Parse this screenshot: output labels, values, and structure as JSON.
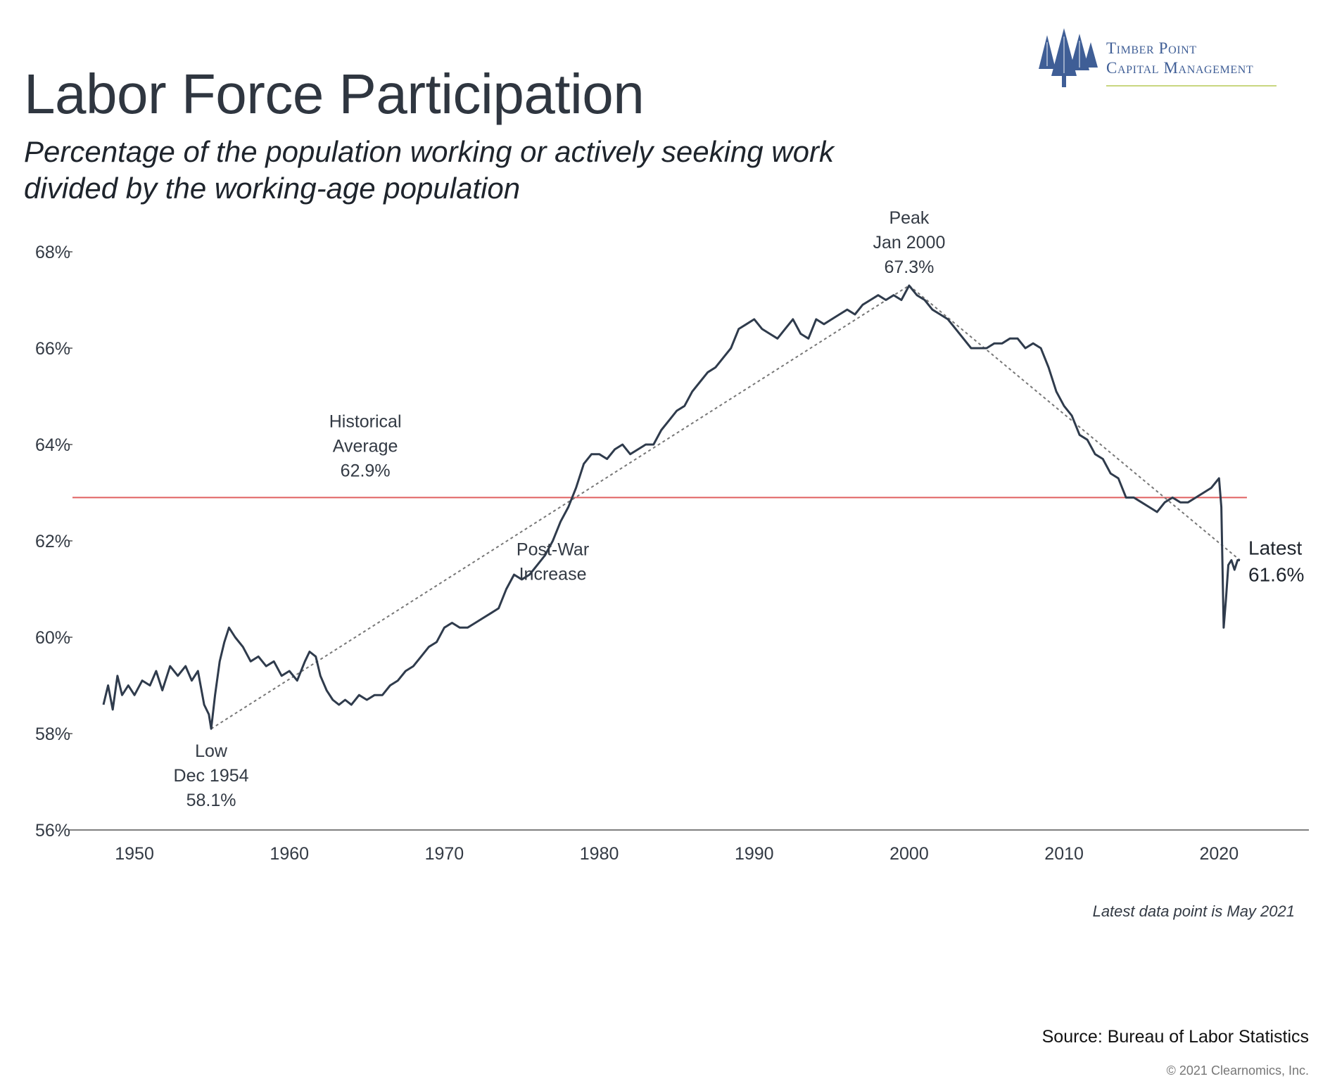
{
  "header": {
    "title": "Labor Force Participation",
    "subtitle_line1": "Percentage of the population working or actively seeking work",
    "subtitle_line2": "divided by the working-age population"
  },
  "logo": {
    "line1": "Timber Point",
    "line2": "Capital Management",
    "color": "#3f5e96",
    "rule_color": "#c9d680"
  },
  "footer": {
    "latest_note": "Latest data point is May 2021",
    "source": "Source: Bureau of Labor Statistics",
    "copyright": "© 2021 Clearnomics, Inc."
  },
  "chart_data": {
    "type": "line",
    "title": "Labor Force Participation",
    "xlabel": "",
    "ylabel": "",
    "xlim": [
      1946,
      2025.8
    ],
    "ylim": [
      56,
      68
    ],
    "grid": false,
    "colors": {
      "line": "#2f3b4c",
      "average": "#e06060",
      "trend": "#777777"
    },
    "y_ticks": [
      {
        "value": 56,
        "label": "56%"
      },
      {
        "value": 58,
        "label": "58%"
      },
      {
        "value": 60,
        "label": "60%"
      },
      {
        "value": 62,
        "label": "62%"
      },
      {
        "value": 64,
        "label": "64%"
      },
      {
        "value": 66,
        "label": "66%"
      },
      {
        "value": 68,
        "label": "68%"
      }
    ],
    "x_ticks": [
      {
        "value": 1950,
        "label": "1950"
      },
      {
        "value": 1960,
        "label": "1960"
      },
      {
        "value": 1970,
        "label": "1970"
      },
      {
        "value": 1980,
        "label": "1980"
      },
      {
        "value": 1990,
        "label": "1990"
      },
      {
        "value": 2000,
        "label": "2000"
      },
      {
        "value": 2010,
        "label": "2010"
      },
      {
        "value": 2020,
        "label": "2020"
      }
    ],
    "series": [
      {
        "values": [
          [
            1948.0,
            58.6
          ],
          [
            1948.3,
            59.0
          ],
          [
            1948.6,
            58.5
          ],
          [
            1948.9,
            59.2
          ],
          [
            1949.2,
            58.8
          ],
          [
            1949.6,
            59.0
          ],
          [
            1950.0,
            58.8
          ],
          [
            1950.5,
            59.1
          ],
          [
            1951.0,
            59.0
          ],
          [
            1951.4,
            59.3
          ],
          [
            1951.8,
            58.9
          ],
          [
            1952.3,
            59.4
          ],
          [
            1952.8,
            59.2
          ],
          [
            1953.3,
            59.4
          ],
          [
            1953.7,
            59.1
          ],
          [
            1954.1,
            59.3
          ],
          [
            1954.5,
            58.6
          ],
          [
            1954.8,
            58.4
          ],
          [
            1954.95,
            58.1
          ],
          [
            1955.2,
            58.8
          ],
          [
            1955.5,
            59.5
          ],
          [
            1955.8,
            59.9
          ],
          [
            1956.1,
            60.2
          ],
          [
            1956.5,
            60.0
          ],
          [
            1957.0,
            59.8
          ],
          [
            1957.5,
            59.5
          ],
          [
            1958.0,
            59.6
          ],
          [
            1958.5,
            59.4
          ],
          [
            1959.0,
            59.5
          ],
          [
            1959.5,
            59.2
          ],
          [
            1960.0,
            59.3
          ],
          [
            1960.5,
            59.1
          ],
          [
            1961.0,
            59.5
          ],
          [
            1961.3,
            59.7
          ],
          [
            1961.7,
            59.6
          ],
          [
            1962.0,
            59.2
          ],
          [
            1962.4,
            58.9
          ],
          [
            1962.8,
            58.7
          ],
          [
            1963.2,
            58.6
          ],
          [
            1963.6,
            58.7
          ],
          [
            1964.0,
            58.6
          ],
          [
            1964.5,
            58.8
          ],
          [
            1965.0,
            58.7
          ],
          [
            1965.5,
            58.8
          ],
          [
            1966.0,
            58.8
          ],
          [
            1966.5,
            59.0
          ],
          [
            1967.0,
            59.1
          ],
          [
            1967.5,
            59.3
          ],
          [
            1968.0,
            59.4
          ],
          [
            1968.5,
            59.6
          ],
          [
            1969.0,
            59.8
          ],
          [
            1969.5,
            59.9
          ],
          [
            1970.0,
            60.2
          ],
          [
            1970.5,
            60.3
          ],
          [
            1971.0,
            60.2
          ],
          [
            1971.5,
            60.2
          ],
          [
            1972.0,
            60.3
          ],
          [
            1972.5,
            60.4
          ],
          [
            1973.0,
            60.5
          ],
          [
            1973.5,
            60.6
          ],
          [
            1974.0,
            61.0
          ],
          [
            1974.5,
            61.3
          ],
          [
            1975.0,
            61.2
          ],
          [
            1975.5,
            61.3
          ],
          [
            1976.0,
            61.5
          ],
          [
            1976.5,
            61.7
          ],
          [
            1977.0,
            62.0
          ],
          [
            1977.5,
            62.4
          ],
          [
            1978.0,
            62.7
          ],
          [
            1978.5,
            63.1
          ],
          [
            1979.0,
            63.6
          ],
          [
            1979.5,
            63.8
          ],
          [
            1980.0,
            63.8
          ],
          [
            1980.5,
            63.7
          ],
          [
            1981.0,
            63.9
          ],
          [
            1981.5,
            64.0
          ],
          [
            1982.0,
            63.8
          ],
          [
            1982.5,
            63.9
          ],
          [
            1983.0,
            64.0
          ],
          [
            1983.5,
            64.0
          ],
          [
            1984.0,
            64.3
          ],
          [
            1984.5,
            64.5
          ],
          [
            1985.0,
            64.7
          ],
          [
            1985.5,
            64.8
          ],
          [
            1986.0,
            65.1
          ],
          [
            1986.5,
            65.3
          ],
          [
            1987.0,
            65.5
          ],
          [
            1987.5,
            65.6
          ],
          [
            1988.0,
            65.8
          ],
          [
            1988.5,
            66.0
          ],
          [
            1989.0,
            66.4
          ],
          [
            1989.5,
            66.5
          ],
          [
            1990.0,
            66.6
          ],
          [
            1990.5,
            66.4
          ],
          [
            1991.0,
            66.3
          ],
          [
            1991.5,
            66.2
          ],
          [
            1992.0,
            66.4
          ],
          [
            1992.5,
            66.6
          ],
          [
            1993.0,
            66.3
          ],
          [
            1993.5,
            66.2
          ],
          [
            1994.0,
            66.6
          ],
          [
            1994.5,
            66.5
          ],
          [
            1995.0,
            66.6
          ],
          [
            1995.5,
            66.7
          ],
          [
            1996.0,
            66.8
          ],
          [
            1996.5,
            66.7
          ],
          [
            1997.0,
            66.9
          ],
          [
            1997.5,
            67.0
          ],
          [
            1998.0,
            67.1
          ],
          [
            1998.5,
            67.0
          ],
          [
            1999.0,
            67.1
          ],
          [
            1999.5,
            67.0
          ],
          [
            2000.0,
            67.3
          ],
          [
            2000.5,
            67.1
          ],
          [
            2001.0,
            67.0
          ],
          [
            2001.5,
            66.8
          ],
          [
            2002.0,
            66.7
          ],
          [
            2002.5,
            66.6
          ],
          [
            2003.0,
            66.4
          ],
          [
            2003.5,
            66.2
          ],
          [
            2004.0,
            66.0
          ],
          [
            2004.5,
            66.0
          ],
          [
            2005.0,
            66.0
          ],
          [
            2005.5,
            66.1
          ],
          [
            2006.0,
            66.1
          ],
          [
            2006.5,
            66.2
          ],
          [
            2007.0,
            66.2
          ],
          [
            2007.5,
            66.0
          ],
          [
            2008.0,
            66.1
          ],
          [
            2008.5,
            66.0
          ],
          [
            2009.0,
            65.6
          ],
          [
            2009.5,
            65.1
          ],
          [
            2010.0,
            64.8
          ],
          [
            2010.5,
            64.6
          ],
          [
            2011.0,
            64.2
          ],
          [
            2011.5,
            64.1
          ],
          [
            2012.0,
            63.8
          ],
          [
            2012.5,
            63.7
          ],
          [
            2013.0,
            63.4
          ],
          [
            2013.5,
            63.3
          ],
          [
            2014.0,
            62.9
          ],
          [
            2014.5,
            62.9
          ],
          [
            2015.0,
            62.8
          ],
          [
            2015.5,
            62.7
          ],
          [
            2016.0,
            62.6
          ],
          [
            2016.5,
            62.8
          ],
          [
            2017.0,
            62.9
          ],
          [
            2017.5,
            62.8
          ],
          [
            2018.0,
            62.8
          ],
          [
            2018.5,
            62.9
          ],
          [
            2019.0,
            63.0
          ],
          [
            2019.5,
            63.1
          ],
          [
            2020.0,
            63.3
          ],
          [
            2020.15,
            62.7
          ],
          [
            2020.3,
            60.2
          ],
          [
            2020.45,
            60.8
          ],
          [
            2020.6,
            61.5
          ],
          [
            2020.8,
            61.6
          ],
          [
            2021.0,
            61.4
          ],
          [
            2021.2,
            61.6
          ],
          [
            2021.35,
            61.6
          ]
        ]
      }
    ],
    "reference_lines": [
      {
        "kind": "average",
        "value": 62.9
      }
    ],
    "trend_lines": [
      {
        "from": [
          1954.95,
          58.1
        ],
        "to": [
          2000.0,
          67.3
        ]
      },
      {
        "from": [
          2000.0,
          67.3
        ],
        "to": [
          2021.35,
          61.6
        ]
      }
    ],
    "annotations": [
      {
        "lines": [
          "Peak",
          "Jan 2000",
          "67.3%"
        ],
        "x": 2000.0,
        "y": 67.3,
        "pos": "above"
      },
      {
        "lines": [
          "Low",
          "Dec 1954",
          "58.1%"
        ],
        "x": 1954.95,
        "y": 58.1,
        "pos": "below"
      },
      {
        "lines": [
          "Historical",
          "Average",
          "62.9%"
        ],
        "x": 1964.9,
        "y": 62.9,
        "pos": "above"
      },
      {
        "lines": [
          "Post-War",
          "Increase"
        ],
        "x": 1977.0,
        "y": 61.7,
        "pos": "free"
      },
      {
        "lines": [
          "Latest",
          "61.6%"
        ],
        "x": 2021.35,
        "y": 61.6,
        "pos": "right"
      }
    ]
  }
}
